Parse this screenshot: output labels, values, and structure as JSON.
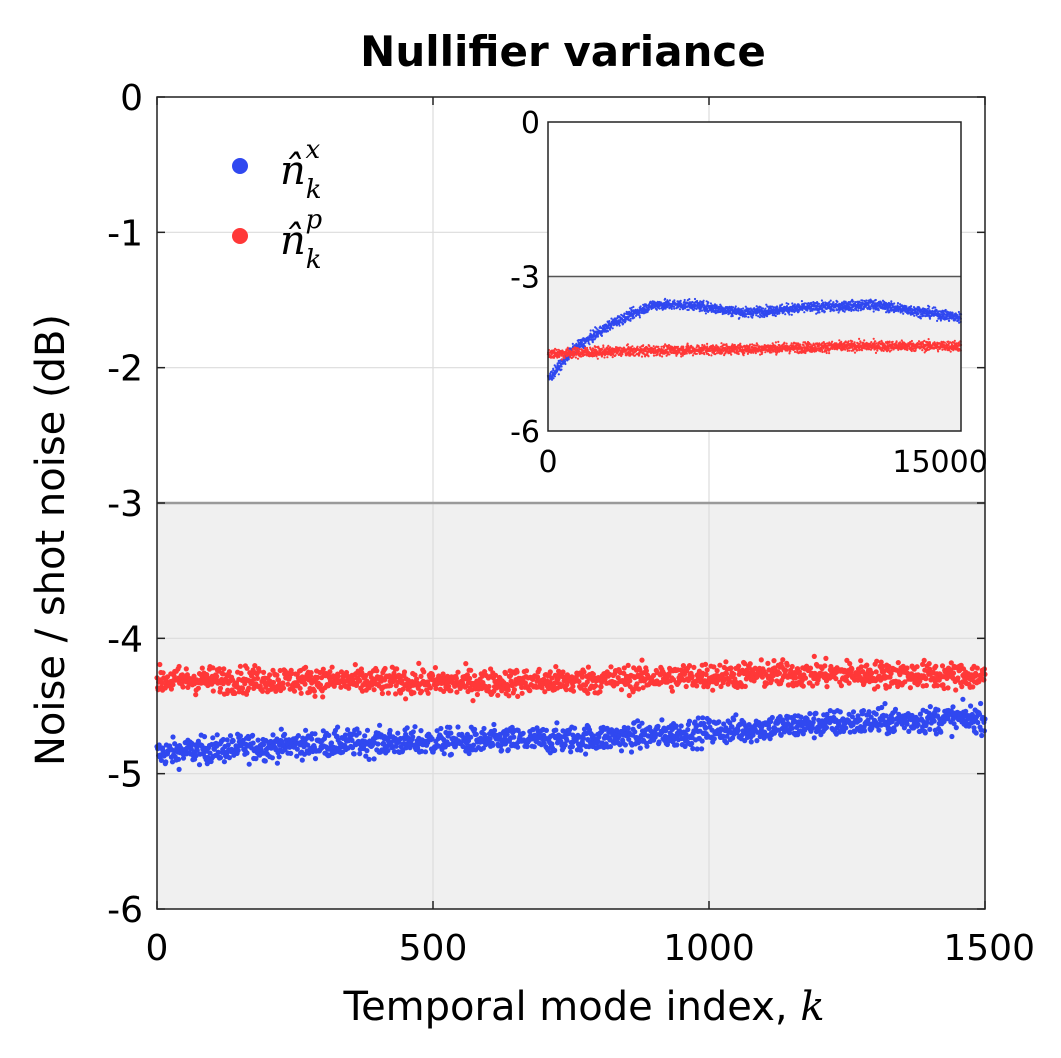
{
  "chart_data": [
    {
      "type": "scatter",
      "title": "Nullifier variance",
      "xlabel_text": "Temporal mode index, ",
      "xlabel_var": "k",
      "ylabel": "Noise / shot noise (dB)",
      "xlim": [
        0,
        1500
      ],
      "ylim": [
        -6,
        0
      ],
      "xticks": [
        "0",
        "500",
        "1000",
        "1500"
      ],
      "yticks": [
        "0",
        "-1",
        "-2",
        "-3",
        "-4",
        "-5",
        "-6"
      ],
      "grid": true,
      "shaded_region": {
        "from": -6,
        "to": -3,
        "color": "#f0f0f0"
      },
      "reference_line": -3,
      "legend_position": "top-left",
      "series": [
        {
          "name": "n_k^x",
          "legend_base": "n̂",
          "legend_sub": "k",
          "legend_sup": "x",
          "color": "#3048f0",
          "x_range": [
            0,
            1500
          ],
          "mean_start": -4.85,
          "mean_end": -4.6,
          "spread": 0.05
        },
        {
          "name": "n_k^p",
          "legend_base": "n̂",
          "legend_sub": "k",
          "legend_sup": "p",
          "color": "#ff3838",
          "x_range": [
            0,
            1500
          ],
          "mean_start": -4.33,
          "mean_end": -4.27,
          "spread": 0.05
        }
      ]
    },
    {
      "type": "scatter",
      "title": "",
      "xlim": [
        0,
        15800
      ],
      "ylim": [
        -6,
        0
      ],
      "xticks": [
        "0",
        "15000"
      ],
      "yticks": [
        "0",
        "-3",
        "-6"
      ],
      "shaded_region": {
        "from": -6,
        "to": -3,
        "color": "#f0f0f0"
      },
      "reference_line": -3,
      "series": [
        {
          "name": "n_k^x",
          "color": "#3048f0",
          "profile": [
            [
              0,
              -5.0
            ],
            [
              1000,
              -4.4
            ],
            [
              2500,
              -3.9
            ],
            [
              4000,
              -3.55
            ],
            [
              5500,
              -3.55
            ],
            [
              7500,
              -3.7
            ],
            [
              10000,
              -3.6
            ],
            [
              12500,
              -3.55
            ],
            [
              14500,
              -3.7
            ],
            [
              15800,
              -3.8
            ]
          ]
        },
        {
          "name": "n_k^p",
          "color": "#ff3838",
          "profile": [
            [
              0,
              -4.5
            ],
            [
              3000,
              -4.45
            ],
            [
              8000,
              -4.4
            ],
            [
              12000,
              -4.35
            ],
            [
              15800,
              -4.35
            ]
          ]
        }
      ]
    }
  ]
}
